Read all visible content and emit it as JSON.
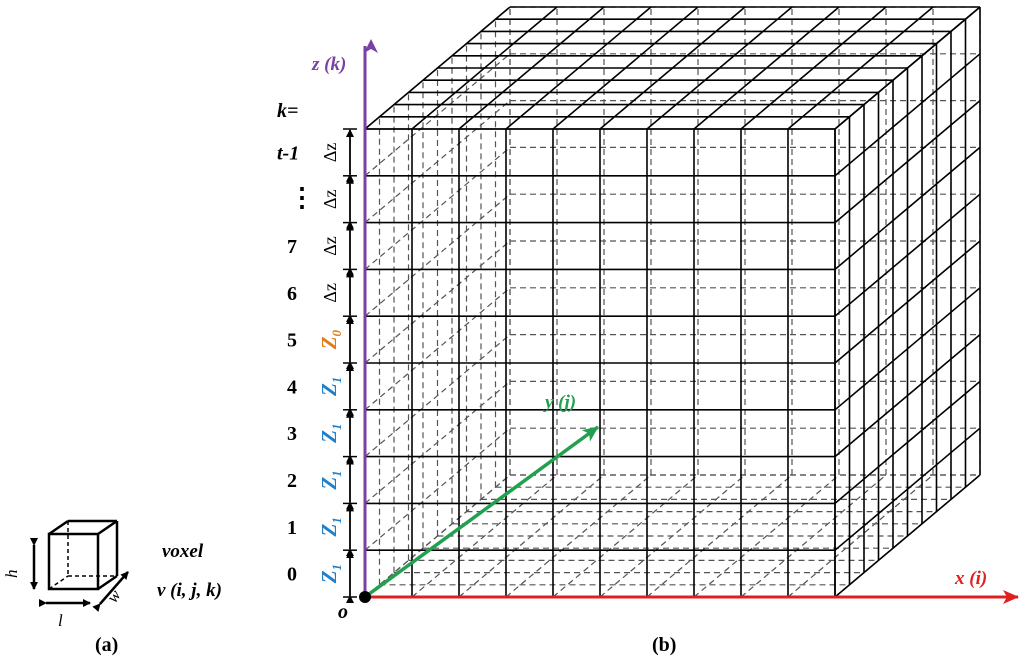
{
  "panel_a": {
    "caption": "(a)",
    "voxel_label": "voxel",
    "voxel_notation": "v (i, j, k)",
    "dim_h": "h",
    "dim_l": "l",
    "dim_w": "w"
  },
  "panel_b": {
    "caption": "(b)",
    "origin": "o",
    "axis_z": "z (k)",
    "axis_x": "x (i)",
    "axis_y": "y (j)",
    "k_header": "k=",
    "layers": [
      {
        "k": "0",
        "zone": "Z",
        "sub": "1",
        "zone_color": "#1f7fc8"
      },
      {
        "k": "1",
        "zone": "Z",
        "sub": "1",
        "zone_color": "#1f7fc8"
      },
      {
        "k": "2",
        "zone": "Z",
        "sub": "1",
        "zone_color": "#1f7fc8"
      },
      {
        "k": "3",
        "zone": "Z",
        "sub": "1",
        "zone_color": "#1f7fc8"
      },
      {
        "k": "4",
        "zone": "Z",
        "sub": "1",
        "zone_color": "#1f7fc8"
      },
      {
        "k": "5",
        "zone": "Z",
        "sub": "0",
        "zone_color": "#e07b1a"
      },
      {
        "k": "6",
        "zone": "Δz",
        "sub": "",
        "zone_color": "#000000"
      },
      {
        "k": "7",
        "zone": "Δz",
        "sub": "",
        "zone_color": "#000000"
      },
      {
        "k": "⋮",
        "zone": "Δz",
        "sub": "",
        "zone_color": "#000000"
      },
      {
        "k": "t-1",
        "zone": "Δz",
        "sub": "",
        "zone_color": "#000000"
      }
    ]
  },
  "colors": {
    "z_axis": "#7b3fa6",
    "x_axis": "#e02020",
    "y_axis": "#22a050",
    "grid": "#000000"
  }
}
